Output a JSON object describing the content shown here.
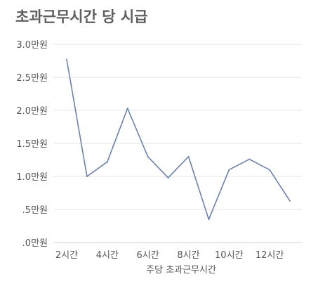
{
  "chart_data": {
    "type": "line",
    "title": "초과근무시간 당 시급",
    "xlabel": "주당 초과근무시간",
    "ylabel": "",
    "ylim": [
      0,
      3.0
    ],
    "grid": true,
    "y_ticks": [
      {
        "value": 3.0,
        "label": "3.0만원"
      },
      {
        "value": 2.5,
        "label": "2.5만원"
      },
      {
        "value": 2.0,
        "label": "2.0만원"
      },
      {
        "value": 1.5,
        "label": "1.5만원"
      },
      {
        "value": 1.0,
        "label": "1.0만원"
      },
      {
        "value": 0.5,
        "label": ".5만원"
      },
      {
        "value": 0.0,
        "label": ".0만원"
      }
    ],
    "x_ticks": [
      {
        "value": 2,
        "label": "2시간"
      },
      {
        "value": 4,
        "label": "4시간"
      },
      {
        "value": 6,
        "label": "6시간"
      },
      {
        "value": 8,
        "label": "8시간"
      },
      {
        "value": 10,
        "label": "10시간"
      },
      {
        "value": 12,
        "label": "12시간"
      }
    ],
    "xlim": [
      2,
      13
    ],
    "series": [
      {
        "color": "#6b82ad",
        "x": [
          2,
          3,
          4,
          5,
          6,
          7,
          8,
          9,
          10,
          11,
          12,
          13
        ],
        "values": [
          2.77,
          1.0,
          1.22,
          2.03,
          1.3,
          0.98,
          1.3,
          0.35,
          1.1,
          1.26,
          1.1,
          0.63
        ]
      }
    ]
  }
}
